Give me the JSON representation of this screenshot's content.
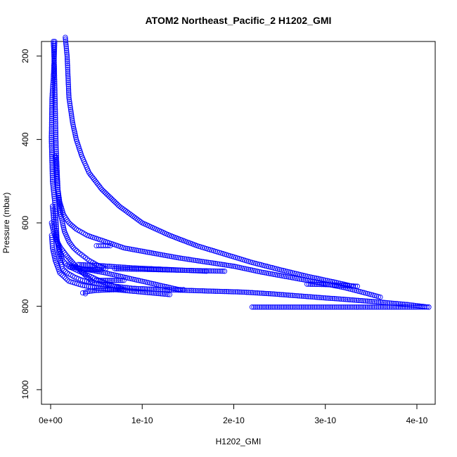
{
  "chart_data": {
    "type": "scatter",
    "title": "ATOM2 Northeast_Pacific_2 H1202_GMI",
    "xlabel": "H1202_GMI",
    "ylabel": "Pressure (mbar)",
    "xlim": [
      -1e-11,
      4.2e-10
    ],
    "ylim": [
      1035,
      165
    ],
    "y_reversed": true,
    "grid": false,
    "x_ticks": [
      {
        "value": 0,
        "label": "0e+00"
      },
      {
        "value": 1e-10,
        "label": "1e-10"
      },
      {
        "value": 2e-10,
        "label": "2e-10"
      },
      {
        "value": 3e-10,
        "label": "3e-10"
      },
      {
        "value": 4e-10,
        "label": "4e-10"
      }
    ],
    "y_ticks": [
      {
        "value": 200,
        "label": "200"
      },
      {
        "value": 400,
        "label": "400"
      },
      {
        "value": 600,
        "label": "600"
      },
      {
        "value": 800,
        "label": "800"
      },
      {
        "value": 1000,
        "label": "1000"
      }
    ],
    "marker": "open-circle",
    "color": "#0000ff",
    "series": [
      {
        "x": [
          4.5e-12,
          4e-12,
          3e-12,
          1.5e-12,
          8e-13,
          2e-12,
          5e-12,
          6e-12,
          7e-12,
          9e-12,
          1.1e-11,
          1.3e-11,
          1.8e-11,
          2.6e-11,
          3.5e-11,
          5e-11,
          7e-11,
          9e-11,
          1.2e-10,
          1.5e-10,
          1.8e-10,
          2.1e-10,
          2.4e-10,
          2.7e-10,
          3e-10,
          3.3e-10,
          3.6e-10,
          3.9e-10,
          4.13e-10
        ],
        "y": [
          165,
          200,
          250,
          300,
          400,
          500,
          560,
          600,
          640,
          670,
          690,
          710,
          720,
          730,
          738,
          745,
          752,
          757,
          760,
          762,
          764,
          766,
          770,
          775,
          780,
          785,
          790,
          796,
          802
        ]
      },
      {
        "x": [
          5e-12,
          6e-12,
          8e-12,
          1e-11,
          1.4e-11,
          2e-11,
          2.8e-11,
          4e-11,
          6e-11,
          8e-11,
          1.1e-10,
          1.4e-10,
          1.7e-10,
          2e-10,
          2.3e-10,
          2.6e-10,
          2.9e-10,
          3.2e-10,
          3.4e-10,
          3.6e-10
        ],
        "y": [
          440,
          480,
          520,
          550,
          580,
          600,
          615,
          630,
          645,
          660,
          672,
          684,
          694,
          704,
          718,
          730,
          742,
          755,
          766,
          778
        ]
      },
      {
        "x": [
          1.6e-11,
          1.8e-11,
          2e-11,
          2.4e-11,
          2.8e-11,
          3.4e-11,
          4.2e-11,
          5.6e-11,
          7.5e-11,
          1e-10,
          1.3e-10,
          1.6e-10,
          1.9e-10,
          2.2e-10,
          2.5e-10,
          2.8e-10,
          3.1e-10,
          3.3e-10
        ],
        "y": [
          155,
          200,
          300,
          360,
          400,
          440,
          480,
          520,
          560,
          600,
          630,
          655,
          675,
          695,
          712,
          728,
          742,
          752
        ]
      },
      {
        "x": [
          3e-12,
          4e-12,
          5e-12,
          6e-12,
          8e-12,
          1.1e-11,
          1.5e-11,
          2e-11,
          2.5e-11,
          3e-11,
          3.6e-11,
          4.2e-11,
          5e-11,
          6e-11
        ],
        "y": [
          165,
          220,
          320,
          420,
          520,
          580,
          620,
          645,
          660,
          670,
          680,
          690,
          700,
          710
        ]
      },
      {
        "x": [
          2e-12,
          4e-12,
          8e-12,
          1.3e-11,
          2e-11,
          3e-11,
          4e-11,
          5e-11,
          6e-11,
          7e-11,
          8e-11
        ],
        "y": [
          560,
          610,
          650,
          690,
          705,
          715,
          725,
          735,
          745,
          752,
          760
        ]
      },
      {
        "x": [
          3.8e-11,
          3.5e-11,
          3.8e-11,
          4.2e-11,
          5e-11,
          6e-11,
          7.5e-11
        ],
        "y": [
          770,
          768,
          766,
          764,
          762,
          761,
          760
        ]
      },
      {
        "x": [
          2e-11,
          4e-11,
          6e-11,
          8e-11,
          1e-10,
          1.2e-10,
          1.4e-10
        ],
        "y": [
          705,
          712,
          720,
          730,
          740,
          750,
          760
        ]
      },
      {
        "x": [
          3e-11,
          5e-11,
          7e-11,
          9e-11,
          1.1e-10,
          1.3e-10,
          1.5e-10,
          1.7e-10
        ],
        "y": [
          700,
          702,
          705,
          708,
          710,
          712,
          714,
          716
        ]
      },
      {
        "x": [
          7e-11,
          9e-11,
          1.1e-10,
          1.3e-10,
          1.5e-10,
          1.7e-10,
          1.9e-10
        ],
        "y": [
          710,
          711,
          712,
          713,
          714,
          715,
          716
        ]
      },
      {
        "x": [
          2e-11,
          2.5e-11,
          3e-11,
          3.5e-11,
          4.5e-11,
          5.5e-11
        ],
        "y": [
          700,
          705,
          708,
          711,
          712,
          713
        ]
      },
      {
        "x": [
          5e-11,
          6e-11,
          7e-11,
          8e-11
        ],
        "y": [
          738,
          738,
          738,
          738
        ]
      },
      {
        "x": [
          5e-11,
          5.5e-11,
          6e-11,
          6.5e-11
        ],
        "y": [
          655,
          655,
          655,
          655
        ]
      },
      {
        "x": [
          1.4e-10,
          1.42e-10,
          1.45e-10
        ],
        "y": [
          760,
          760,
          760
        ]
      },
      {
        "x": [
          2.2e-10,
          2.5e-10,
          2.8e-10,
          3.1e-10,
          3.4e-10,
          3.7e-10,
          4e-10,
          4.13e-10
        ],
        "y": [
          802,
          802,
          802,
          802,
          802,
          802,
          802,
          802
        ]
      },
      {
        "x": [
          2.8e-10,
          3e-10,
          3.2e-10,
          3.35e-10
        ],
        "y": [
          747,
          748,
          750,
          752
        ]
      },
      {
        "x": [
          1e-12,
          3e-12,
          6e-12,
          1.1e-11,
          1.8e-11,
          2.6e-11,
          3.5e-11,
          4.5e-11
        ],
        "y": [
          600,
          620,
          640,
          660,
          680,
          700,
          720,
          740
        ]
      },
      {
        "x": [
          1e-12,
          2e-12,
          5e-12,
          1e-11,
          2e-11,
          3.5e-11,
          5e-11,
          7e-11,
          9e-11,
          1.1e-10,
          1.3e-10
        ],
        "y": [
          630,
          660,
          690,
          720,
          740,
          750,
          756,
          760,
          764,
          768,
          772
        ]
      }
    ]
  }
}
